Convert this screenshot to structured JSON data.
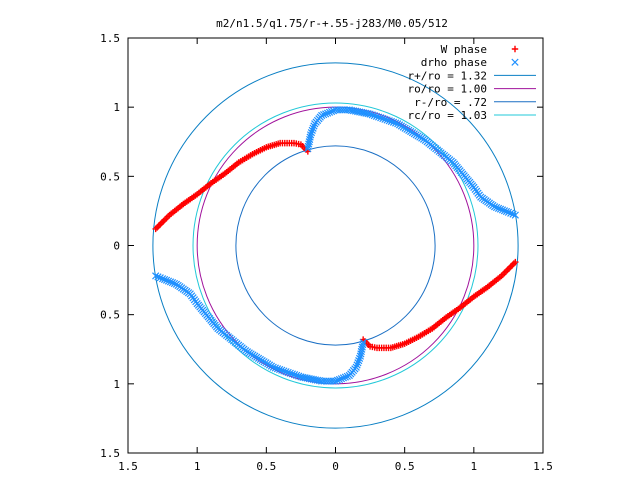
{
  "chart_data": {
    "type": "scatter",
    "title": "m2/n1.5/q1.75/r-+.55-j283/M0.05/512",
    "xlim": [
      -1.5,
      1.5
    ],
    "ylim": [
      -1.5,
      1.5
    ],
    "xticks": [
      -1.5,
      -1,
      -0.5,
      0,
      0.5,
      1,
      1.5
    ],
    "yticks": [
      1.5,
      1,
      0.5,
      0,
      -0.5,
      -1,
      -1.5
    ],
    "xtick_labels": [
      "1.5",
      "1",
      "0.5",
      "0",
      "0.5",
      "1",
      "1.5"
    ],
    "ytick_labels": [
      "1.5",
      "1",
      "0.5",
      "0",
      "0.5",
      "1",
      "1.5"
    ],
    "grid": false,
    "legend_position": "top-right",
    "series": [
      {
        "name": "W phase",
        "marker": "+",
        "color": "#ff0000",
        "arms": [
          {
            "points": [
              [
                -1.3,
                0.12
              ],
              [
                -1.2,
                0.22
              ],
              [
                -1.1,
                0.3
              ],
              [
                -1.0,
                0.37
              ],
              [
                -0.9,
                0.45
              ],
              [
                -0.8,
                0.52
              ],
              [
                -0.7,
                0.6
              ],
              [
                -0.6,
                0.66
              ],
              [
                -0.5,
                0.71
              ],
              [
                -0.4,
                0.74
              ],
              [
                -0.3,
                0.74
              ],
              [
                -0.25,
                0.73
              ],
              [
                -0.2,
                0.68
              ]
            ]
          },
          {
            "points": [
              [
                1.3,
                -0.12
              ],
              [
                1.2,
                -0.22
              ],
              [
                1.1,
                -0.3
              ],
              [
                1.0,
                -0.37
              ],
              [
                0.9,
                -0.45
              ],
              [
                0.8,
                -0.52
              ],
              [
                0.7,
                -0.6
              ],
              [
                0.6,
                -0.66
              ],
              [
                0.5,
                -0.71
              ],
              [
                0.4,
                -0.74
              ],
              [
                0.3,
                -0.74
              ],
              [
                0.25,
                -0.73
              ],
              [
                0.2,
                -0.68
              ]
            ]
          }
        ]
      },
      {
        "name": "drho phase",
        "marker": "x",
        "color": "#1e90ff",
        "arms": [
          {
            "points": [
              [
                -0.2,
                0.7
              ],
              [
                -0.18,
                0.8
              ],
              [
                -0.15,
                0.88
              ],
              [
                -0.1,
                0.94
              ],
              [
                0.0,
                0.98
              ],
              [
                0.1,
                0.98
              ],
              [
                0.25,
                0.95
              ],
              [
                0.45,
                0.88
              ],
              [
                0.65,
                0.76
              ],
              [
                0.85,
                0.6
              ],
              [
                1.0,
                0.42
              ],
              [
                1.05,
                0.35
              ],
              [
                1.15,
                0.28
              ],
              [
                1.25,
                0.24
              ],
              [
                1.3,
                0.22
              ]
            ]
          },
          {
            "points": [
              [
                0.2,
                -0.7
              ],
              [
                0.18,
                -0.8
              ],
              [
                0.15,
                -0.88
              ],
              [
                0.1,
                -0.94
              ],
              [
                0.0,
                -0.98
              ],
              [
                -0.1,
                -0.98
              ],
              [
                -0.25,
                -0.95
              ],
              [
                -0.45,
                -0.88
              ],
              [
                -0.65,
                -0.76
              ],
              [
                -0.85,
                -0.6
              ],
              [
                -1.0,
                -0.42
              ],
              [
                -1.05,
                -0.35
              ],
              [
                -1.15,
                -0.28
              ],
              [
                -1.25,
                -0.24
              ],
              [
                -1.3,
                -0.22
              ]
            ]
          }
        ]
      },
      {
        "name": "r+/ro = 1.32",
        "type": "circle",
        "radius": 1.32,
        "color": "#0a7fc4"
      },
      {
        "name": "ro/ro = 1.00",
        "type": "circle",
        "radius": 1.0,
        "color": "#a0129c"
      },
      {
        "name": "r-/ro = .72",
        "type": "circle",
        "radius": 0.72,
        "color": "#1a6fc4"
      },
      {
        "name": "rc/ro = 1.03",
        "type": "circle",
        "radius": 1.03,
        "color": "#22c8d8"
      }
    ]
  }
}
